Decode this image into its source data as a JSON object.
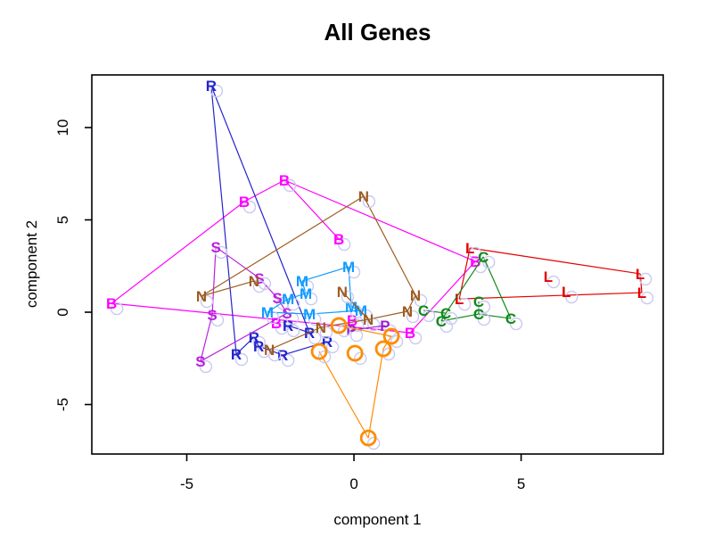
{
  "title": "All Genes",
  "chart_data": {
    "type": "scatter",
    "title": "All Genes",
    "xlabel": "component 1",
    "ylabel": "component 2",
    "xlim": [
      -7.84,
      9.25
    ],
    "ylim": [
      -7.68,
      12.85
    ],
    "x_ticks": [
      "-5",
      "0",
      "5"
    ],
    "x_tick_values": [
      -5,
      0,
      5
    ],
    "y_ticks": [
      "-5",
      "0",
      "5",
      "10"
    ],
    "y_tick_values": [
      -5,
      0,
      5,
      10
    ],
    "grid": false,
    "legend": "none",
    "axis_color": "#000000",
    "point_halo_color": "#c9c9f2",
    "groups": [
      {
        "label": "B",
        "color": "#ff00ff",
        "marker": "letter",
        "points": [
          [
            -7.25,
            0.48
          ],
          [
            -3.28,
            5.99
          ],
          [
            -2.08,
            7.15
          ],
          [
            -0.45,
            3.96
          ],
          [
            -2.32,
            -0.58
          ],
          [
            -0.05,
            -0.43
          ],
          [
            1.68,
            -1.11
          ],
          [
            3.63,
            2.75
          ]
        ],
        "segments": [
          [
            0,
            1
          ],
          [
            1,
            2
          ],
          [
            2,
            3
          ],
          [
            2,
            7
          ],
          [
            0,
            6
          ],
          [
            6,
            7
          ]
        ]
      },
      {
        "label": "R",
        "color": "#2424cc",
        "marker": "letter",
        "points": [
          [
            -4.27,
            12.27
          ],
          [
            -1.97,
            -0.72
          ],
          [
            -1.33,
            -1.11
          ],
          [
            -0.8,
            -1.59
          ],
          [
            -2.99,
            -1.35
          ],
          [
            -2.85,
            -1.84
          ],
          [
            -3.52,
            -2.27
          ],
          [
            -2.13,
            -2.32
          ]
        ],
        "segments": [
          [
            0,
            6
          ],
          [
            0,
            2
          ],
          [
            6,
            4
          ],
          [
            4,
            5
          ],
          [
            5,
            7
          ],
          [
            7,
            3
          ],
          [
            1,
            2
          ]
        ]
      },
      {
        "label": "S",
        "color": "#bb22dd",
        "marker": "letter",
        "points": [
          [
            -4.13,
            3.53
          ],
          [
            -2.83,
            1.84
          ],
          [
            -2.29,
            0.77
          ],
          [
            -2.0,
            -0.05
          ],
          [
            -4.24,
            -0.14
          ],
          [
            -4.59,
            -2.66
          ]
        ],
        "segments": [
          [
            0,
            4
          ],
          [
            4,
            5
          ],
          [
            0,
            1
          ],
          [
            1,
            2
          ],
          [
            2,
            3
          ],
          [
            5,
            3
          ]
        ]
      },
      {
        "label": "M",
        "color": "#0f9bff",
        "marker": "letter",
        "points": [
          [
            -0.16,
            2.46
          ],
          [
            -1.55,
            1.69
          ],
          [
            -1.44,
            1.01
          ],
          [
            -1.97,
            0.72
          ],
          [
            -0.08,
            0.29
          ],
          [
            0.21,
            0.1
          ],
          [
            -2.59,
            0.0
          ],
          [
            -1.33,
            -0.1
          ]
        ],
        "segments": [
          [
            1,
            0
          ],
          [
            0,
            4
          ],
          [
            4,
            5
          ],
          [
            1,
            2
          ],
          [
            2,
            3
          ],
          [
            3,
            6
          ],
          [
            6,
            7
          ],
          [
            7,
            5
          ]
        ]
      },
      {
        "label": "N",
        "color": "#9e5c1f",
        "marker": "letter",
        "points": [
          [
            0.29,
            6.28
          ],
          [
            -2.99,
            1.69
          ],
          [
            -4.56,
            0.87
          ],
          [
            -0.35,
            1.11
          ],
          [
            1.84,
            0.92
          ],
          [
            1.6,
            0.05
          ],
          [
            0.43,
            -0.39
          ],
          [
            -0.99,
            -0.82
          ],
          [
            -2.53,
            -2.03
          ]
        ],
        "segments": [
          [
            2,
            0
          ],
          [
            0,
            4
          ],
          [
            4,
            5
          ],
          [
            5,
            6
          ],
          [
            6,
            7
          ],
          [
            7,
            8
          ],
          [
            1,
            2
          ],
          [
            3,
            6
          ]
        ]
      },
      {
        "label": "L",
        "color": "#e60000",
        "marker": "letter",
        "points": [
          [
            3.47,
            3.48
          ],
          [
            3.15,
            0.72
          ],
          [
            5.81,
            1.93
          ],
          [
            6.35,
            1.11
          ],
          [
            8.56,
            2.08
          ],
          [
            8.61,
            1.06
          ]
        ],
        "segments": [
          [
            0,
            1
          ],
          [
            0,
            4
          ],
          [
            4,
            5
          ],
          [
            1,
            5
          ]
        ]
      },
      {
        "label": "C",
        "color": "#108a1a",
        "marker": "letter",
        "points": [
          [
            3.87,
            3.0
          ],
          [
            2.08,
            0.1
          ],
          [
            2.75,
            -0.05
          ],
          [
            2.61,
            -0.48
          ],
          [
            3.73,
            0.58
          ],
          [
            3.73,
            -0.1
          ],
          [
            4.69,
            -0.34
          ]
        ],
        "segments": [
          [
            0,
            2
          ],
          [
            0,
            6
          ],
          [
            1,
            2
          ],
          [
            2,
            3
          ],
          [
            3,
            5
          ],
          [
            4,
            5
          ],
          [
            5,
            6
          ]
        ]
      },
      {
        "label": "P",
        "color": "#9922cc",
        "marker": "letter",
        "points": [
          [
            -0.08,
            -0.97
          ],
          [
            0.93,
            -0.72
          ]
        ],
        "segments": [
          [
            0,
            1
          ]
        ]
      },
      {
        "label": "O",
        "color": "#ff8c00",
        "marker": "circle",
        "points": [
          [
            -0.45,
            -0.72
          ],
          [
            1.12,
            -1.3
          ],
          [
            -1.04,
            -2.13
          ],
          [
            0.03,
            -2.22
          ],
          [
            0.88,
            -1.98
          ],
          [
            0.43,
            -6.81
          ]
        ],
        "segments": [
          [
            0,
            1
          ],
          [
            1,
            4
          ],
          [
            2,
            5
          ],
          [
            5,
            4
          ]
        ]
      }
    ]
  }
}
